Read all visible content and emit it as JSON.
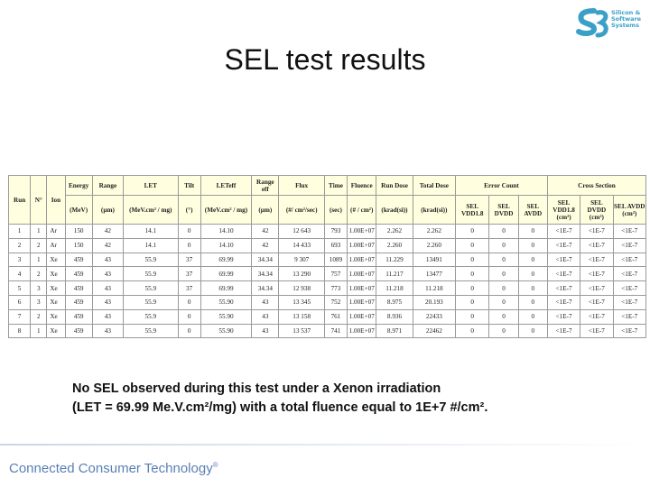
{
  "logo": {
    "lines": [
      "Silicon &",
      "Software",
      "Systems"
    ],
    "mark_color": "#3aa0c8"
  },
  "title": "SEL test results",
  "table": {
    "header1": [
      "Run",
      "N°",
      "Ion",
      "Energy",
      "Range",
      "LET",
      "Tilt",
      "LETeff",
      "Range eff",
      "Flux",
      "Time",
      "Fluence",
      "Run Dose",
      "Total Dose",
      "Error Count",
      "Cross Section"
    ],
    "header2": [
      "(MeV)",
      "(µm)",
      "(MeV.cm² / mg)",
      "(°)",
      "(MeV.cm² / mg)",
      "(µm)",
      "(#/ cm²/sec)",
      "(sec)",
      "(# / cm²)",
      "(krad(si))",
      "(krad(si))",
      "SEL VDD1.8",
      "SEL DVDD",
      "SEL AVDD",
      "SEL VDD1.8 (cm²)",
      "SEL DVDD (cm²)",
      "SEL AVDD (cm²)"
    ],
    "rows": [
      [
        "1",
        "1",
        "Ar",
        "150",
        "42",
        "14.1",
        "0",
        "14.10",
        "42",
        "12 643",
        "793",
        "1.00E+07",
        "2.262",
        "2.262",
        "0",
        "0",
        "0",
        "<1E-7",
        "<1E-7",
        "<1E-7"
      ],
      [
        "2",
        "2",
        "Ar",
        "150",
        "42",
        "14.1",
        "0",
        "14.10",
        "42",
        "14 433",
        "693",
        "1.00E+07",
        "2.260",
        "2.260",
        "0",
        "0",
        "0",
        "<1E-7",
        "<1E-7",
        "<1E-7"
      ],
      [
        "3",
        "1",
        "Xe",
        "459",
        "43",
        "55.9",
        "37",
        "69.99",
        "34.34",
        "9 307",
        "1089",
        "1.00E+07",
        "11.229",
        "13491",
        "0",
        "0",
        "0",
        "<1E-7",
        "<1E-7",
        "<1E-7"
      ],
      [
        "4",
        "2",
        "Xe",
        "459",
        "43",
        "55.9",
        "37",
        "69.99",
        "34.34",
        "13 290",
        "757",
        "1.00E+07",
        "11.217",
        "13477",
        "0",
        "0",
        "0",
        "<1E-7",
        "<1E-7",
        "<1E-7"
      ],
      [
        "5",
        "3",
        "Xe",
        "459",
        "43",
        "55.9",
        "37",
        "69.99",
        "34.34",
        "12 938",
        "773",
        "1.00E+07",
        "11.218",
        "11.218",
        "0",
        "0",
        "0",
        "<1E-7",
        "<1E-7",
        "<1E-7"
      ],
      [
        "6",
        "3",
        "Xe",
        "459",
        "43",
        "55.9",
        "0",
        "55.90",
        "43",
        "13 345",
        "752",
        "1.00E+07",
        "8.975",
        "20.193",
        "0",
        "0",
        "0",
        "<1E-7",
        "<1E-7",
        "<1E-7"
      ],
      [
        "7",
        "2",
        "Xe",
        "459",
        "43",
        "55.9",
        "0",
        "55.90",
        "43",
        "13 158",
        "761",
        "1.00E+07",
        "8.936",
        "22433",
        "0",
        "0",
        "0",
        "<1E-7",
        "<1E-7",
        "<1E-7"
      ],
      [
        "8",
        "1",
        "Xe",
        "459",
        "43",
        "55.9",
        "0",
        "55.90",
        "43",
        "13 537",
        "741",
        "1.00E+07",
        "8.971",
        "22462",
        "0",
        "0",
        "0",
        "<1E-7",
        "<1E-7",
        "<1E-7"
      ]
    ]
  },
  "note": {
    "line1": "No SEL observed during this test under a Xenon irradiation",
    "line2": "(LET = 69.99 Me.V.cm²/mg) with a total fluence equal to 1E+7 #/cm²."
  },
  "footer": {
    "text": "Connected Consumer Technology",
    "mark": "®",
    "color": "#5a7fb5"
  }
}
